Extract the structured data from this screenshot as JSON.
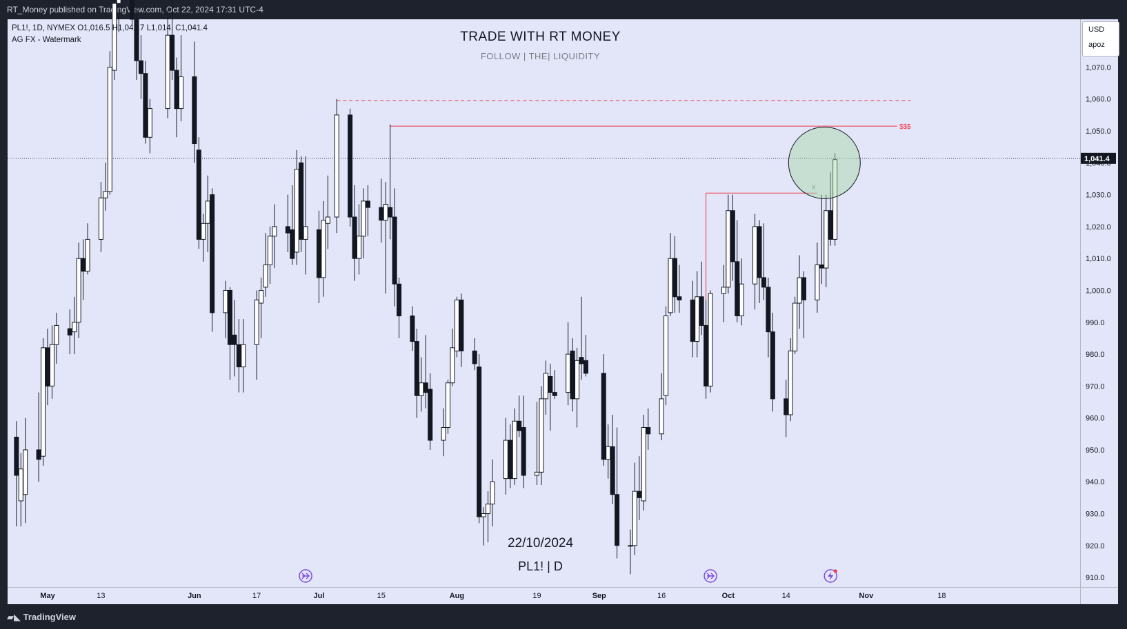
{
  "header": {
    "published": "RT_Money published on TradingView.com, Oct 22, 2024 17:31 UTC-4"
  },
  "legend": {
    "ohlc": "PL1!, 1D, NYMEX  O1,016.5  H1,042.7  L1,014.  C1,041.4",
    "indicator": "AG FX - Watermark"
  },
  "watermark": {
    "title": "TRADE WITH RT MONEY",
    "subtitle": "FOLLOW   |   THE|   LIQUIDITY",
    "date": "22/10/2024",
    "symbol": "PL1! | D"
  },
  "price_scale": {
    "currency": "USD",
    "unit": "apoz",
    "last_price_label": "1,041.4"
  },
  "footer": {
    "logo_text": "TradingView"
  },
  "colors": {
    "chart_bg": "#e3e6f8",
    "up_candle": "#ffffff",
    "down_candle": "#131722",
    "level_line": "#f23645",
    "highlight_circle": "#a5d6a7"
  },
  "chart_data": {
    "type": "candlestick",
    "symbol": "PL1!",
    "interval": "1D",
    "exchange": "NYMEX",
    "ylim": [
      907,
      1085
    ],
    "y_ticks": [
      "910.0",
      "920.0",
      "930.0",
      "940.0",
      "950.0",
      "960.0",
      "970.0",
      "980.0",
      "990.0",
      "1,000.0",
      "1,010.0",
      "1,020.0",
      "1,030.0",
      "1,040.0",
      "1,050.0",
      "1,060.0",
      "1,070.0"
    ],
    "x_ticks": [
      {
        "date": "2024-05-01",
        "label": "May"
      },
      {
        "date": "2024-05-13",
        "label": "13"
      },
      {
        "date": "2024-06-03",
        "label": "Jun"
      },
      {
        "date": "2024-06-17",
        "label": "17"
      },
      {
        "date": "2024-07-01",
        "label": "Jul"
      },
      {
        "date": "2024-07-15",
        "label": "15"
      },
      {
        "date": "2024-08-01",
        "label": "Aug"
      },
      {
        "date": "2024-08-19",
        "label": "19"
      },
      {
        "date": "2024-09-02",
        "label": "Sep"
      },
      {
        "date": "2024-09-16",
        "label": "16"
      },
      {
        "date": "2024-10-01",
        "label": "Oct"
      },
      {
        "date": "2024-10-14",
        "label": "14"
      },
      {
        "date": "2024-11-01",
        "label": "Nov"
      },
      {
        "date": "2024-11-18",
        "label": "18"
      }
    ],
    "last_price": 1041.4,
    "levels": [
      {
        "style": "dashed",
        "price": 1059.5,
        "from": "2024-07-05",
        "to": "2024-11-11"
      },
      {
        "style": "solid",
        "price": 1051.5,
        "from": "2024-07-17",
        "to": "2024-11-08",
        "label": "$$$"
      },
      {
        "style": "solid",
        "price": 1030.5,
        "from": "2024-09-26",
        "to": "2024-10-21",
        "label": "x"
      }
    ],
    "highlight": {
      "date": "2024-10-22",
      "price": 1040.0,
      "shape": "circle"
    },
    "event_markers": [
      "2024-06-28",
      "2024-09-27",
      "2024-10-24"
    ],
    "candles": [
      {
        "d": "2024-04-24",
        "o": 954,
        "h": 959,
        "l": 926,
        "c": 942
      },
      {
        "d": "2024-04-25",
        "o": 934,
        "h": 949,
        "l": 926,
        "c": 944
      },
      {
        "d": "2024-04-26",
        "o": 936,
        "h": 960,
        "l": 927,
        "c": 950
      },
      {
        "d": "2024-04-29",
        "o": 950,
        "h": 968,
        "l": 940,
        "c": 947
      },
      {
        "d": "2024-04-30",
        "o": 948,
        "h": 985,
        "l": 945,
        "c": 982
      },
      {
        "d": "2024-05-01",
        "o": 982,
        "h": 988,
        "l": 964,
        "c": 970
      },
      {
        "d": "2024-05-02",
        "o": 970,
        "h": 989,
        "l": 966,
        "c": 983
      },
      {
        "d": "2024-05-03",
        "o": 983,
        "h": 993,
        "l": 977,
        "c": 989
      },
      {
        "d": "2024-05-06",
        "o": 988,
        "h": 994,
        "l": 980,
        "c": 986
      },
      {
        "d": "2024-05-07",
        "o": 987,
        "h": 998,
        "l": 980,
        "c": 990
      },
      {
        "d": "2024-05-08",
        "o": 990,
        "h": 1015,
        "l": 985,
        "c": 1010
      },
      {
        "d": "2024-05-09",
        "o": 1010,
        "h": 1016,
        "l": 997,
        "c": 1006
      },
      {
        "d": "2024-05-10",
        "o": 1006,
        "h": 1021,
        "l": 1005,
        "c": 1016
      },
      {
        "d": "2024-05-13",
        "o": 1016,
        "h": 1034,
        "l": 1012,
        "c": 1029
      },
      {
        "d": "2024-05-14",
        "o": 1029,
        "h": 1040,
        "l": 1025,
        "c": 1031
      },
      {
        "d": "2024-05-15",
        "o": 1031,
        "h": 1075,
        "l": 1030,
        "c": 1070
      },
      {
        "d": "2024-05-16",
        "o": 1069,
        "h": 1093,
        "l": 1066,
        "c": 1090
      },
      {
        "d": "2024-05-17",
        "o": 1090,
        "h": 1094,
        "l": 1081,
        "c": 1092
      },
      {
        "d": "2024-05-20",
        "o": 1092,
        "h": 1094,
        "l": 1083,
        "c": 1085
      },
      {
        "d": "2024-05-21",
        "o": 1085,
        "h": 1089,
        "l": 1066,
        "c": 1072
      },
      {
        "d": "2024-05-22",
        "o": 1072,
        "h": 1080,
        "l": 1060,
        "c": 1068
      },
      {
        "d": "2024-05-23",
        "o": 1068,
        "h": 1072,
        "l": 1046,
        "c": 1048
      },
      {
        "d": "2024-05-24",
        "o": 1048,
        "h": 1060,
        "l": 1043,
        "c": 1057
      },
      {
        "d": "2024-05-28",
        "o": 1057,
        "h": 1088,
        "l": 1054,
        "c": 1080
      },
      {
        "d": "2024-05-29",
        "o": 1080,
        "h": 1091,
        "l": 1066,
        "c": 1069
      },
      {
        "d": "2024-05-30",
        "o": 1069,
        "h": 1073,
        "l": 1048,
        "c": 1057
      },
      {
        "d": "2024-05-31",
        "o": 1057,
        "h": 1080,
        "l": 1053,
        "c": 1067
      },
      {
        "d": "2024-06-03",
        "o": 1067,
        "h": 1078,
        "l": 1040,
        "c": 1046
      },
      {
        "d": "2024-06-04",
        "o": 1044,
        "h": 1048,
        "l": 1013,
        "c": 1016
      },
      {
        "d": "2024-06-05",
        "o": 1016,
        "h": 1024,
        "l": 1009,
        "c": 1021
      },
      {
        "d": "2024-06-06",
        "o": 1021,
        "h": 1036,
        "l": 1012,
        "c": 1028
      },
      {
        "d": "2024-06-07",
        "o": 1030,
        "h": 1032,
        "l": 987,
        "c": 993
      },
      {
        "d": "2024-06-10",
        "o": 993,
        "h": 1003,
        "l": 985,
        "c": 1000
      },
      {
        "d": "2024-06-11",
        "o": 1000,
        "h": 1001,
        "l": 972,
        "c": 983
      },
      {
        "d": "2024-06-12",
        "o": 986,
        "h": 997,
        "l": 973,
        "c": 983
      },
      {
        "d": "2024-06-13",
        "o": 983,
        "h": 991,
        "l": 968,
        "c": 976
      },
      {
        "d": "2024-06-14",
        "o": 976,
        "h": 991,
        "l": 968,
        "c": 983
      },
      {
        "d": "2024-06-17",
        "o": 983,
        "h": 1000,
        "l": 972,
        "c": 997
      },
      {
        "d": "2024-06-18",
        "o": 996,
        "h": 1004,
        "l": 985,
        "c": 1000
      },
      {
        "d": "2024-06-19",
        "o": 1001,
        "h": 1018,
        "l": 998,
        "c": 1008
      },
      {
        "d": "2024-06-20",
        "o": 1008,
        "h": 1020,
        "l": 1002,
        "c": 1017
      },
      {
        "d": "2024-06-21",
        "o": 1017,
        "h": 1027,
        "l": 1007,
        "c": 1020
      },
      {
        "d": "2024-06-24",
        "o": 1020,
        "h": 1030,
        "l": 1012,
        "c": 1018
      },
      {
        "d": "2024-06-25",
        "o": 1019,
        "h": 1033,
        "l": 1008,
        "c": 1010
      },
      {
        "d": "2024-06-26",
        "o": 1012,
        "h": 1044,
        "l": 1008,
        "c": 1038
      },
      {
        "d": "2024-06-27",
        "o": 1040,
        "h": 1042,
        "l": 1012,
        "c": 1016
      },
      {
        "d": "2024-06-28",
        "o": 1016,
        "h": 1042,
        "l": 1005,
        "c": 1020
      },
      {
        "d": "2024-07-01",
        "o": 1019,
        "h": 1025,
        "l": 996,
        "c": 1004
      },
      {
        "d": "2024-07-02",
        "o": 1004,
        "h": 1028,
        "l": 998,
        "c": 1022
      },
      {
        "d": "2024-07-03",
        "o": 1021,
        "h": 1036,
        "l": 1013,
        "c": 1023
      },
      {
        "d": "2024-07-05",
        "o": 1023,
        "h": 1060,
        "l": 1018,
        "c": 1055
      },
      {
        "d": "2024-07-08",
        "o": 1055,
        "h": 1057,
        "l": 1020,
        "c": 1023
      },
      {
        "d": "2024-07-09",
        "o": 1023,
        "h": 1033,
        "l": 1003,
        "c": 1010
      },
      {
        "d": "2024-07-10",
        "o": 1010,
        "h": 1027,
        "l": 1005,
        "c": 1017
      },
      {
        "d": "2024-07-11",
        "o": 1017,
        "h": 1032,
        "l": 1010,
        "c": 1028
      },
      {
        "d": "2024-07-12",
        "o": 1028,
        "h": 1033,
        "l": 1017,
        "c": 1026
      },
      {
        "d": "2024-07-15",
        "o": 1026,
        "h": 1035,
        "l": 1015,
        "c": 1022
      },
      {
        "d": "2024-07-16",
        "o": 1022,
        "h": 1034,
        "l": 999,
        "c": 1027
      },
      {
        "d": "2024-07-17",
        "o": 1026,
        "h": 1052,
        "l": 1016,
        "c": 1023
      },
      {
        "d": "2024-07-18",
        "o": 1023,
        "h": 1032,
        "l": 995,
        "c": 1002
      },
      {
        "d": "2024-07-19",
        "o": 1002,
        "h": 1004,
        "l": 985,
        "c": 992
      },
      {
        "d": "2024-07-22",
        "o": 992,
        "h": 995,
        "l": 981,
        "c": 984
      },
      {
        "d": "2024-07-23",
        "o": 984,
        "h": 988,
        "l": 960,
        "c": 967
      },
      {
        "d": "2024-07-24",
        "o": 967,
        "h": 979,
        "l": 962,
        "c": 971
      },
      {
        "d": "2024-07-25",
        "o": 971,
        "h": 986,
        "l": 963,
        "c": 968
      },
      {
        "d": "2024-07-26",
        "o": 969,
        "h": 974,
        "l": 950,
        "c": 953
      },
      {
        "d": "2024-07-29",
        "o": 953,
        "h": 963,
        "l": 948,
        "c": 957
      },
      {
        "d": "2024-07-30",
        "o": 957,
        "h": 972,
        "l": 955,
        "c": 971
      },
      {
        "d": "2024-07-31",
        "o": 971,
        "h": 988,
        "l": 970,
        "c": 982
      },
      {
        "d": "2024-08-01",
        "o": 981,
        "h": 998,
        "l": 979,
        "c": 997
      },
      {
        "d": "2024-08-02",
        "o": 997,
        "h": 999,
        "l": 976,
        "c": 981
      },
      {
        "d": "2024-08-05",
        "o": 981,
        "h": 985,
        "l": 975,
        "c": 977
      },
      {
        "d": "2024-08-06",
        "o": 976,
        "h": 980,
        "l": 927,
        "c": 929
      },
      {
        "d": "2024-08-07",
        "o": 929,
        "h": 932,
        "l": 920,
        "c": 930
      },
      {
        "d": "2024-08-08",
        "o": 930,
        "h": 937,
        "l": 921,
        "c": 933
      },
      {
        "d": "2024-08-09",
        "o": 933,
        "h": 947,
        "l": 926,
        "c": 940
      },
      {
        "d": "2024-08-12",
        "o": 941,
        "h": 960,
        "l": 936,
        "c": 953
      },
      {
        "d": "2024-08-13",
        "o": 953,
        "h": 958,
        "l": 938,
        "c": 941
      },
      {
        "d": "2024-08-14",
        "o": 941,
        "h": 963,
        "l": 939,
        "c": 959
      },
      {
        "d": "2024-08-15",
        "o": 959,
        "h": 967,
        "l": 954,
        "c": 956
      },
      {
        "d": "2024-08-16",
        "o": 957,
        "h": 967,
        "l": 938,
        "c": 942
      },
      {
        "d": "2024-08-19",
        "o": 942,
        "h": 965,
        "l": 939,
        "c": 943
      },
      {
        "d": "2024-08-20",
        "o": 943,
        "h": 970,
        "l": 939,
        "c": 966
      },
      {
        "d": "2024-08-21",
        "o": 966,
        "h": 978,
        "l": 961,
        "c": 974
      },
      {
        "d": "2024-08-22",
        "o": 973,
        "h": 977,
        "l": 956,
        "c": 968
      },
      {
        "d": "2024-08-23",
        "o": 968,
        "h": 975,
        "l": 966,
        "c": 967
      },
      {
        "d": "2024-08-26",
        "o": 968,
        "h": 990,
        "l": 964,
        "c": 980
      },
      {
        "d": "2024-08-27",
        "o": 981,
        "h": 985,
        "l": 962,
        "c": 966
      },
      {
        "d": "2024-08-28",
        "o": 966,
        "h": 982,
        "l": 957,
        "c": 978
      },
      {
        "d": "2024-08-29",
        "o": 979,
        "h": 998,
        "l": 972,
        "c": 977
      },
      {
        "d": "2024-08-30",
        "o": 978,
        "h": 986,
        "l": 973,
        "c": 974
      },
      {
        "d": "2024-09-03",
        "o": 974,
        "h": 980,
        "l": 945,
        "c": 947
      },
      {
        "d": "2024-09-04",
        "o": 947,
        "h": 958,
        "l": 941,
        "c": 951
      },
      {
        "d": "2024-09-05",
        "o": 951,
        "h": 961,
        "l": 933,
        "c": 936
      },
      {
        "d": "2024-09-06",
        "o": 936,
        "h": 957,
        "l": 916,
        "c": 920
      },
      {
        "d": "2024-09-09",
        "o": 920,
        "h": 925,
        "l": 911,
        "c": 920
      },
      {
        "d": "2024-09-10",
        "o": 920,
        "h": 946,
        "l": 917,
        "c": 937
      },
      {
        "d": "2024-09-11",
        "o": 937,
        "h": 948,
        "l": 928,
        "c": 935
      },
      {
        "d": "2024-09-12",
        "o": 934,
        "h": 961,
        "l": 931,
        "c": 957
      },
      {
        "d": "2024-09-13",
        "o": 957,
        "h": 963,
        "l": 950,
        "c": 955
      },
      {
        "d": "2024-09-16",
        "o": 955,
        "h": 974,
        "l": 953,
        "c": 966
      },
      {
        "d": "2024-09-17",
        "o": 967,
        "h": 995,
        "l": 964,
        "c": 992
      },
      {
        "d": "2024-09-18",
        "o": 993,
        "h": 1018,
        "l": 992,
        "c": 1010
      },
      {
        "d": "2024-09-19",
        "o": 1010,
        "h": 1017,
        "l": 993,
        "c": 998
      },
      {
        "d": "2024-09-20",
        "o": 998,
        "h": 1008,
        "l": 993,
        "c": 997
      },
      {
        "d": "2024-09-23",
        "o": 997,
        "h": 1003,
        "l": 979,
        "c": 984
      },
      {
        "d": "2024-09-24",
        "o": 984,
        "h": 1006,
        "l": 979,
        "c": 998
      },
      {
        "d": "2024-09-25",
        "o": 998,
        "h": 1009,
        "l": 986,
        "c": 989
      },
      {
        "d": "2024-09-26",
        "o": 989,
        "h": 997,
        "l": 966,
        "c": 970
      },
      {
        "d": "2024-09-27",
        "o": 970,
        "h": 1000,
        "l": 968,
        "c": 999
      },
      {
        "d": "2024-09-30",
        "o": 999,
        "h": 1008,
        "l": 990,
        "c": 1001
      },
      {
        "d": "2024-10-01",
        "o": 1001,
        "h": 1030,
        "l": 999,
        "c": 1025
      },
      {
        "d": "2024-10-02",
        "o": 1025,
        "h": 1030,
        "l": 1003,
        "c": 1009
      },
      {
        "d": "2024-10-03",
        "o": 1009,
        "h": 1022,
        "l": 990,
        "c": 992
      },
      {
        "d": "2024-10-04",
        "o": 992,
        "h": 1010,
        "l": 989,
        "c": 1002
      },
      {
        "d": "2024-10-07",
        "o": 1002,
        "h": 1024,
        "l": 994,
        "c": 1020
      },
      {
        "d": "2024-10-08",
        "o": 1020,
        "h": 1022,
        "l": 996,
        "c": 1004
      },
      {
        "d": "2024-10-09",
        "o": 1004,
        "h": 1021,
        "l": 997,
        "c": 1001
      },
      {
        "d": "2024-10-10",
        "o": 1001,
        "h": 1004,
        "l": 979,
        "c": 987
      },
      {
        "d": "2024-10-11",
        "o": 987,
        "h": 993,
        "l": 962,
        "c": 966
      },
      {
        "d": "2024-10-14",
        "o": 966,
        "h": 972,
        "l": 954,
        "c": 961
      },
      {
        "d": "2024-10-15",
        "o": 961,
        "h": 985,
        "l": 959,
        "c": 981
      },
      {
        "d": "2024-10-16",
        "o": 981,
        "h": 998,
        "l": 980,
        "c": 996
      },
      {
        "d": "2024-10-17",
        "o": 996,
        "h": 1011,
        "l": 988,
        "c": 1004
      },
      {
        "d": "2024-10-18",
        "o": 1004,
        "h": 1006,
        "l": 985,
        "c": 997
      },
      {
        "d": "2024-10-21",
        "o": 997,
        "h": 1015,
        "l": 993,
        "c": 1008
      },
      {
        "d": "2024-10-22",
        "o": 1008,
        "h": 1030,
        "l": 1002,
        "c": 1007
      },
      {
        "d": "2024-10-23",
        "o": 1007,
        "h": 1030,
        "l": 1001,
        "c": 1025
      },
      {
        "d": "2024-10-24",
        "o": 1025,
        "h": 1037,
        "l": 1014,
        "c": 1016
      },
      {
        "d": "2024-10-25",
        "o": 1016,
        "h": 1043,
        "l": 1014,
        "c": 1041
      }
    ]
  }
}
